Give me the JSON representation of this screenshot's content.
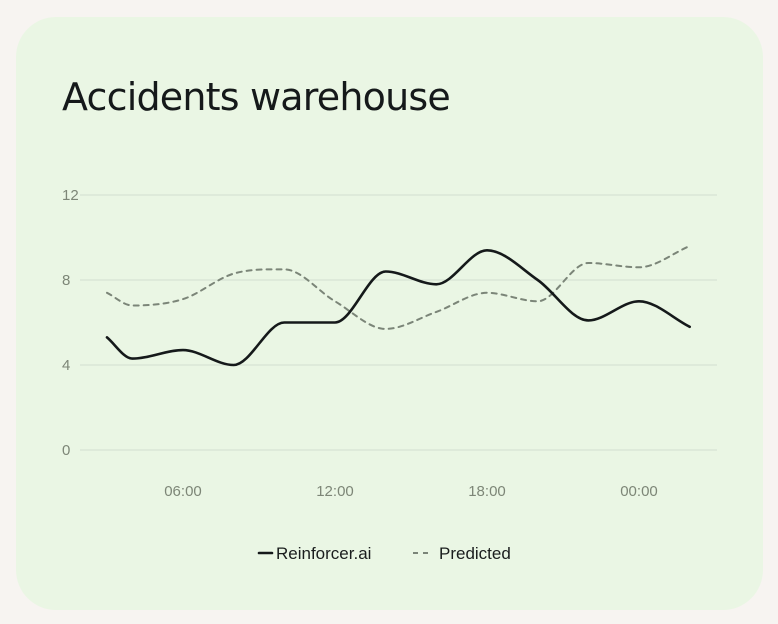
{
  "card": {
    "title": "Accidents warehouse"
  },
  "colors": {
    "background": "#f7f4f1",
    "card": "#eaf6e4",
    "grid": "#d3dfcf",
    "series_actual": "#15191a",
    "series_predicted": "#7b8578"
  },
  "chart_data": {
    "type": "line",
    "title": "Accidents warehouse",
    "xlabel": "",
    "ylabel": "",
    "x_ticks": [
      "06:00",
      "12:00",
      "18:00",
      "00:00"
    ],
    "y_ticks": [
      "0",
      "4",
      "8",
      "12"
    ],
    "ylim": [
      0,
      12
    ],
    "grid": "horizontal",
    "legend_position": "bottom-center",
    "x_hours": [
      3,
      4,
      6,
      8,
      10,
      12,
      14,
      16,
      18,
      20,
      22,
      24,
      26
    ],
    "series": [
      {
        "name": "Reinforcer.ai",
        "style": "solid",
        "values": [
          5.3,
          4.3,
          4.7,
          4.0,
          6.0,
          6.0,
          8.4,
          7.8,
          9.4,
          8.0,
          6.1,
          7.0,
          5.8
        ]
      },
      {
        "name": "Predicted",
        "style": "dashed",
        "values": [
          7.4,
          6.8,
          7.1,
          8.3,
          8.5,
          7.0,
          5.7,
          6.5,
          7.4,
          7.0,
          8.8,
          8.6,
          9.6
        ]
      }
    ]
  }
}
